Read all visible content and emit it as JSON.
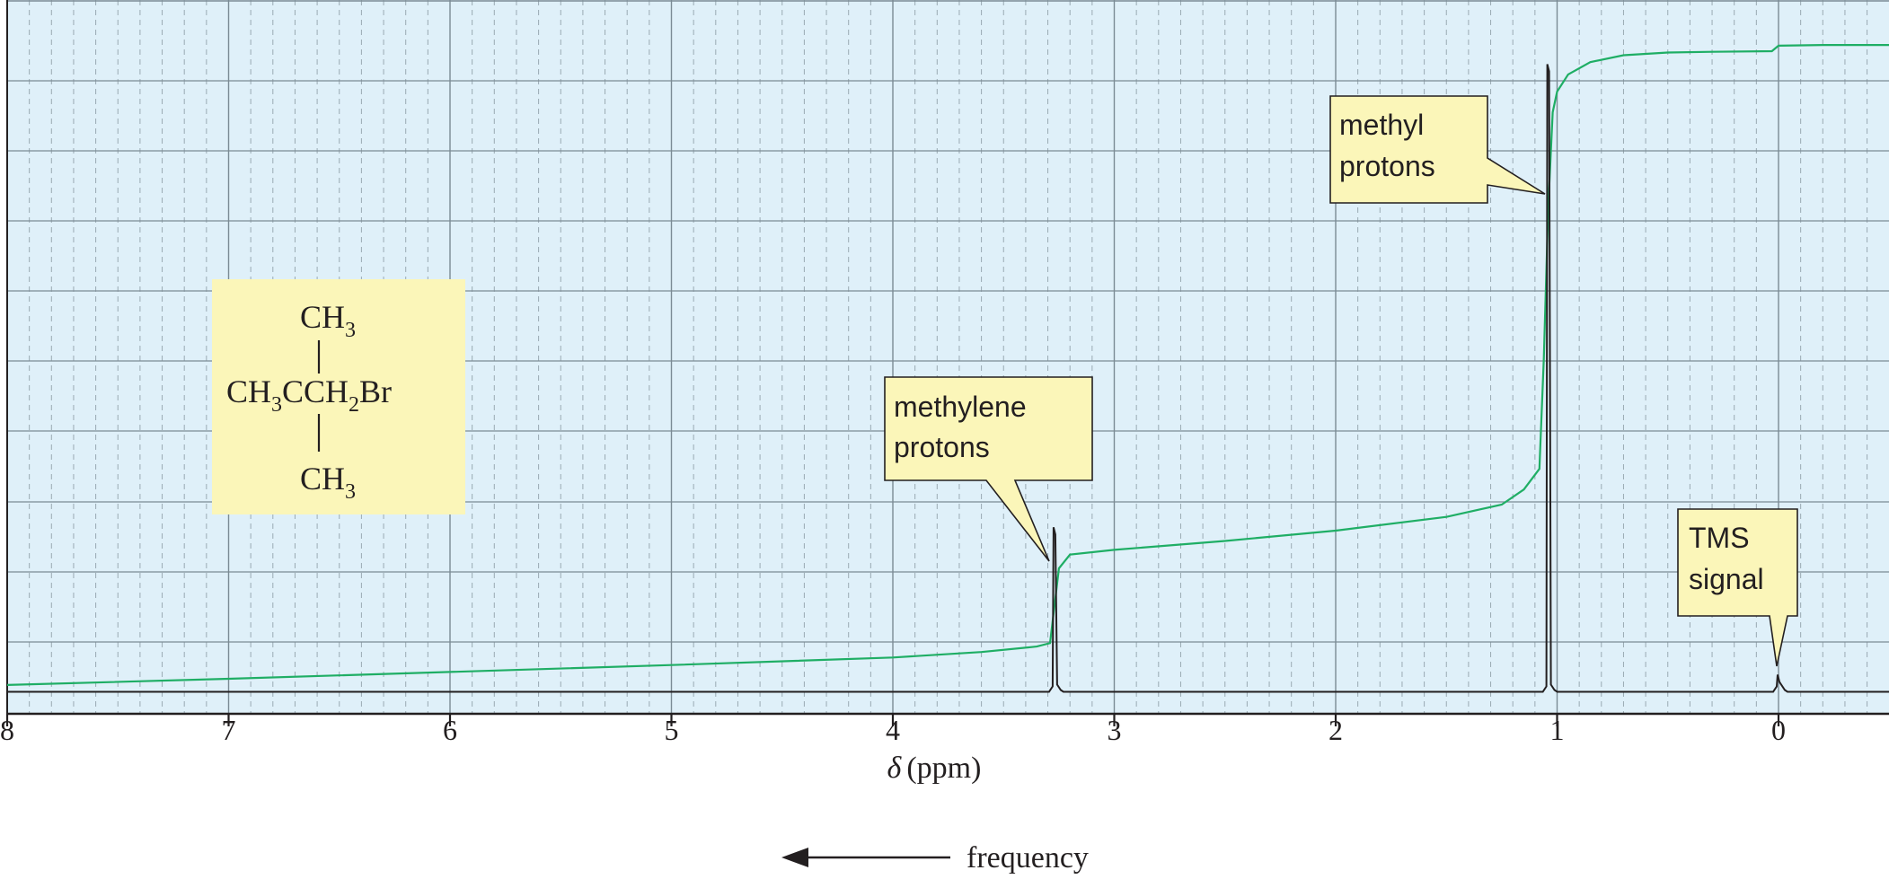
{
  "chart_data": {
    "type": "line",
    "title": "",
    "x_axis": {
      "label_symbol": "δ",
      "label_unit": "(ppm)",
      "range": [
        8,
        -0.5
      ],
      "reversed": true,
      "ticks": [
        8,
        7,
        6,
        5,
        4,
        3,
        2,
        1,
        0
      ],
      "tick_labels": [
        "8",
        "7",
        "6",
        "5",
        "4",
        "3",
        "2",
        "1",
        "0"
      ],
      "minor_grid_step": 0.1
    },
    "y_axis": {
      "label": "",
      "range": [
        0,
        100
      ],
      "tick_labels_visible": false
    },
    "grid": true,
    "direction_note": {
      "arrow": "←",
      "text": "frequency"
    },
    "series": [
      {
        "role": "spectrum",
        "color": "#231f20",
        "baseline": 1.5,
        "peaks": [
          {
            "delta": 3.27,
            "height": 25.5,
            "label": "methylene protons"
          },
          {
            "delta": 1.04,
            "height": 93,
            "label": "methyl protons"
          },
          {
            "delta": 0.0,
            "height": 4,
            "label": "TMS signal"
          }
        ]
      },
      {
        "role": "integration",
        "color": "#1fae65",
        "x": [
          8,
          7,
          6,
          5,
          4,
          3.6,
          3.35,
          3.29,
          3.27,
          3.25,
          3.2,
          3.0,
          2.5,
          2.0,
          1.5,
          1.25,
          1.15,
          1.08,
          1.06,
          1.04,
          1.02,
          1.0,
          0.95,
          0.85,
          0.7,
          0.5,
          0.3,
          0.03,
          0.0,
          -0.2,
          -0.5
        ],
        "y": [
          2.5,
          3.4,
          4.4,
          5.4,
          6.5,
          7.3,
          8.1,
          8.6,
          14,
          19.5,
          21.5,
          22.2,
          23.5,
          25,
          27,
          28.8,
          31,
          34,
          50,
          72,
          86,
          89,
          91.5,
          93.3,
          94.3,
          94.7,
          94.8,
          94.9,
          95.7,
          95.8,
          95.8
        ]
      }
    ],
    "structure": {
      "formula_lines": [
        {
          "main": "CH",
          "sub": "3"
        },
        {
          "part1": "CH",
          "sub1": "3",
          "part2": "CCH",
          "sub2": "2",
          "part3": "Br"
        },
        {
          "main": "CH",
          "sub": "3"
        }
      ],
      "background_color": "#fbf6b9"
    },
    "callouts": [
      {
        "line1": "methylene",
        "line2": "protons"
      },
      {
        "line1": "methyl",
        "line2": "protons"
      },
      {
        "line1": "TMS",
        "line2": "signal"
      }
    ],
    "colors": {
      "plot_background": "#dff0f9",
      "major_grid": "#7b8b95",
      "minor_grid": "#9aaab3",
      "callout_fill": "#fbf6b9"
    }
  }
}
